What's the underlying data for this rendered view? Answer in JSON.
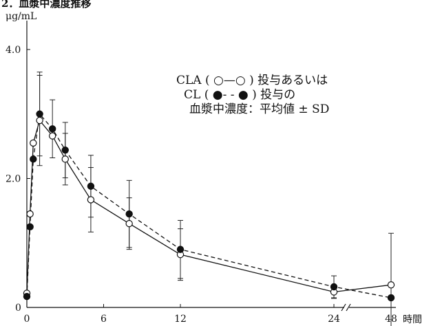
{
  "chart_data": {
    "type": "line",
    "title_fragment": "2．血漿中濃度推移",
    "ylabel": "μg/mL",
    "xlabel": "時間",
    "ylim": [
      0,
      4.0
    ],
    "x_ticks": [
      0,
      6,
      12,
      24,
      48
    ],
    "y_ticks": [
      {
        "value": 0,
        "label": "0"
      },
      {
        "value": 2.0,
        "label": "2.0"
      },
      {
        "value": 4.0,
        "label": "4.0"
      }
    ],
    "x_axis_break": "between 24 and 48",
    "legend": {
      "line1": "CLA ( ○—○ ) 投与あるいは",
      "line2": "CL ( ●- - ● ) 投与の",
      "line3": "血漿中濃度：平均値 ± SD"
    },
    "series": [
      {
        "name": "CLA",
        "marker": "open-circle",
        "dash": "solid",
        "points": [
          {
            "x": 0,
            "y": 0.22
          },
          {
            "x": 0.25,
            "y": 1.45
          },
          {
            "x": 0.5,
            "y": 2.55
          },
          {
            "x": 1,
            "y": 2.9,
            "err": 0.7
          },
          {
            "x": 2,
            "y": 2.66
          },
          {
            "x": 3,
            "y": 2.3,
            "err": 0.4
          },
          {
            "x": 5,
            "y": 1.67,
            "err": 0.5
          },
          {
            "x": 8,
            "y": 1.3,
            "err": 0.4
          },
          {
            "x": 12,
            "y": 0.82,
            "err": 0.4
          },
          {
            "x": 24,
            "y": 0.24,
            "err": 0.1
          },
          {
            "x": 48,
            "y": 0.35,
            "err": 0.8
          }
        ]
      },
      {
        "name": "CL",
        "marker": "filled-circle",
        "dash": "dashed",
        "points": [
          {
            "x": 0,
            "y": 0.17
          },
          {
            "x": 0.25,
            "y": 1.25
          },
          {
            "x": 0.5,
            "y": 2.3
          },
          {
            "x": 1,
            "y": 3.0,
            "err": 0.65
          },
          {
            "x": 2,
            "y": 2.77,
            "err": 0.45
          },
          {
            "x": 3,
            "y": 2.44,
            "err": 0.43
          },
          {
            "x": 5,
            "y": 1.88,
            "err": 0.48
          },
          {
            "x": 8,
            "y": 1.45,
            "err": 0.52
          },
          {
            "x": 12,
            "y": 0.9,
            "err": 0.45
          },
          {
            "x": 24,
            "y": 0.32,
            "err": 0.17
          },
          {
            "x": 48,
            "y": 0.15
          }
        ]
      }
    ]
  }
}
